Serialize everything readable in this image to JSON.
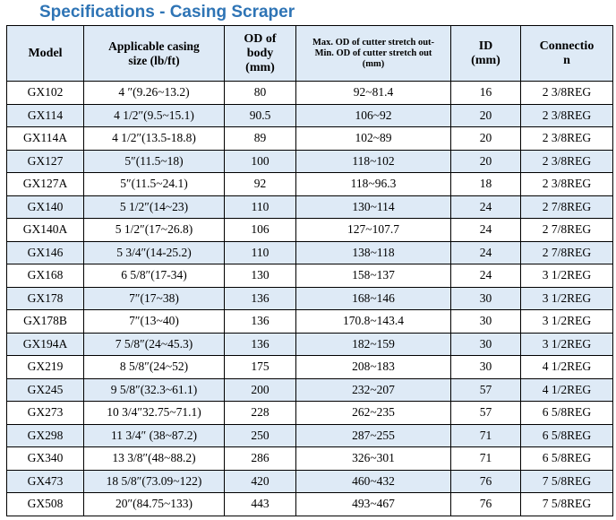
{
  "title": "Specifications - Casing Scraper",
  "headers": {
    "model": "Model",
    "casing_line1": "Applicable casing",
    "casing_line2": "size (lb/ft)",
    "od_line1": "OD of",
    "od_line2": "body",
    "od_line3": "(mm)",
    "max_line1": "Max. OD of cutter stretch out-",
    "max_line2": "Min. OD of cutter stretch out",
    "max_line3": "(mm)",
    "id_line1": "ID",
    "id_line2": "(mm)",
    "conn_line1": "Connectio",
    "conn_line2": "n"
  },
  "rows": [
    {
      "model": "GX102",
      "casing": "4 ″(9.26~13.2)",
      "od": "80",
      "stretch": "92~81.4",
      "id": "16",
      "conn": "2 3/8REG"
    },
    {
      "model": "GX114",
      "casing": "4 1/2″(9.5~15.1)",
      "od": "90.5",
      "stretch": "106~92",
      "id": "20",
      "conn": "2 3/8REG"
    },
    {
      "model": "GX114A",
      "casing": "4 1/2″(13.5-18.8)",
      "od": "89",
      "stretch": "102~89",
      "id": "20",
      "conn": "2 3/8REG"
    },
    {
      "model": "GX127",
      "casing": "5″(11.5~18)",
      "od": "100",
      "stretch": "118~102",
      "id": "20",
      "conn": "2 3/8REG"
    },
    {
      "model": "GX127A",
      "casing": "5″(11.5~24.1)",
      "od": "92",
      "stretch": "118~96.3",
      "id": "18",
      "conn": "2 3/8REG"
    },
    {
      "model": "GX140",
      "casing": "5 1/2″(14~23)",
      "od": "110",
      "stretch": "130~114",
      "id": "24",
      "conn": "2 7/8REG"
    },
    {
      "model": "GX140A",
      "casing": "5 1/2″(17~26.8)",
      "od": "106",
      "stretch": "127~107.7",
      "id": "24",
      "conn": "2 7/8REG"
    },
    {
      "model": "GX146",
      "casing": "5 3/4″(14-25.2)",
      "od": "110",
      "stretch": "138~118",
      "id": "24",
      "conn": "2 7/8REG"
    },
    {
      "model": "GX168",
      "casing": "6 5/8″(17-34)",
      "od": "130",
      "stretch": "158~137",
      "id": "24",
      "conn": "3 1/2REG"
    },
    {
      "model": "GX178",
      "casing": "7″(17~38)",
      "od": "136",
      "stretch": "168~146",
      "id": "30",
      "conn": "3 1/2REG"
    },
    {
      "model": "GX178B",
      "casing": "7″(13~40)",
      "od": "136",
      "stretch": "170.8~143.4",
      "id": "30",
      "conn": "3 1/2REG"
    },
    {
      "model": "GX194A",
      "casing": "7 5/8″(24~45.3)",
      "od": "136",
      "stretch": "182~159",
      "id": "30",
      "conn": "3 1/2REG"
    },
    {
      "model": "GX219",
      "casing": "8 5/8″(24~52)",
      "od": "175",
      "stretch": "208~183",
      "id": "30",
      "conn": "4 1/2REG"
    },
    {
      "model": "GX245",
      "casing": "9 5/8″(32.3~61.1)",
      "od": "200",
      "stretch": "232~207",
      "id": "57",
      "conn": "4 1/2REG"
    },
    {
      "model": "GX273",
      "casing": "10 3/4″32.75~71.1)",
      "od": "228",
      "stretch": "262~235",
      "id": "57",
      "conn": "6 5/8REG"
    },
    {
      "model": "GX298",
      "casing": "11 3/4″ (38~87.2)",
      "od": "250",
      "stretch": "287~255",
      "id": "71",
      "conn": "6 5/8REG"
    },
    {
      "model": "GX340",
      "casing": "13 3/8″(48~88.2)",
      "od": "286",
      "stretch": "326~301",
      "id": "71",
      "conn": "6 5/8REG"
    },
    {
      "model": "GX473",
      "casing": "18 5/8″(73.09~122)",
      "od": "420",
      "stretch": "460~432",
      "id": "76",
      "conn": "7 5/8REG"
    },
    {
      "model": "GX508",
      "casing": "20″(84.75~133)",
      "od": "443",
      "stretch": "493~467",
      "id": "76",
      "conn": "7 5/8REG"
    }
  ]
}
